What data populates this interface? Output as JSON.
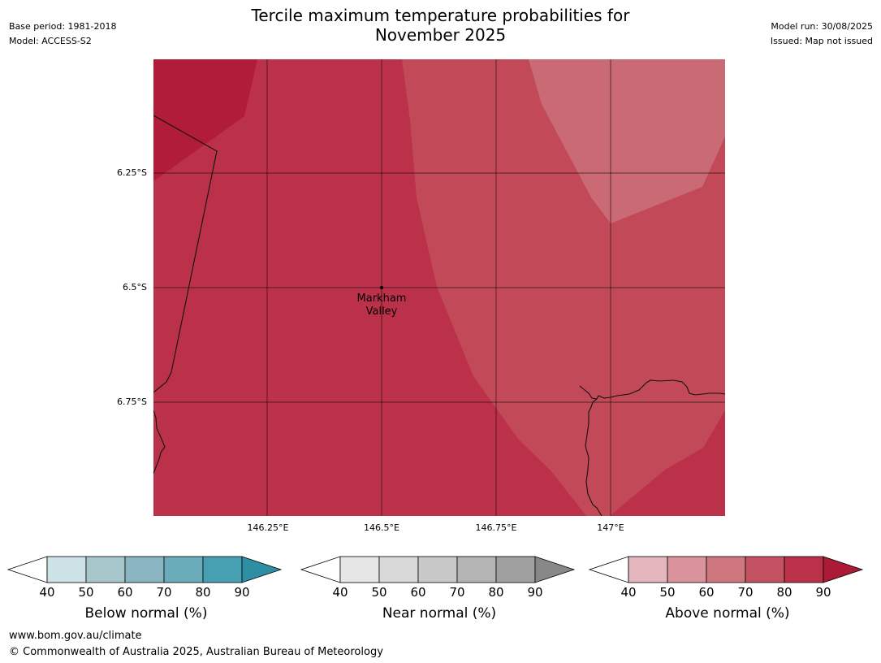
{
  "header": {
    "title_line1": "Tercile maximum temperature probabilities for",
    "title_line2": "November 2025",
    "base_period": "Base period: 1981-2018",
    "model": "Model: ACCESS-S2",
    "model_run": "Model run: 30/08/2025",
    "issued": "Issued: Map not issued"
  },
  "map": {
    "lat_labels": [
      "6.25°S",
      "6.5°S",
      "6.75°S"
    ],
    "lon_labels": [
      "146.25°E",
      "146.5°E",
      "146.75°E",
      "147°E"
    ],
    "place": {
      "line1": "Markham",
      "line2": "Valley"
    },
    "zone_colors": {
      "above_80_90": "#b11c39",
      "above_70_80": "#bb3149",
      "above_60_70": "#c24a58",
      "above_50_60": "#c96a74"
    }
  },
  "colorbars": [
    {
      "title": "Below normal (%)",
      "ticks": [
        "40",
        "50",
        "60",
        "70",
        "80",
        "90"
      ],
      "low_color": "#ffffff",
      "colors": [
        "#cce2e7",
        "#a8c7cd",
        "#89b6c2",
        "#6aacba",
        "#46a0b1"
      ],
      "high_color": "#2f8fa2"
    },
    {
      "title": "Near normal (%)",
      "ticks": [
        "40",
        "50",
        "60",
        "70",
        "80",
        "90"
      ],
      "low_color": "#ffffff",
      "colors": [
        "#e6e6e6",
        "#d8d8d8",
        "#c8c8c8",
        "#b4b4b4",
        "#a0a0a0"
      ],
      "high_color": "#888888"
    },
    {
      "title": "Above normal (%)",
      "ticks": [
        "40",
        "50",
        "60",
        "70",
        "80",
        "90"
      ],
      "low_color": "#ffffff",
      "colors": [
        "#e3b7bd",
        "#d8939c",
        "#cf777e",
        "#c55262",
        "#bb3149"
      ],
      "high_color": "#ab1b37"
    }
  ],
  "footer": {
    "url": "www.bom.gov.au/climate",
    "copyright": "© Commonwealth of Australia 2025, Australian Bureau of Meteorology"
  }
}
